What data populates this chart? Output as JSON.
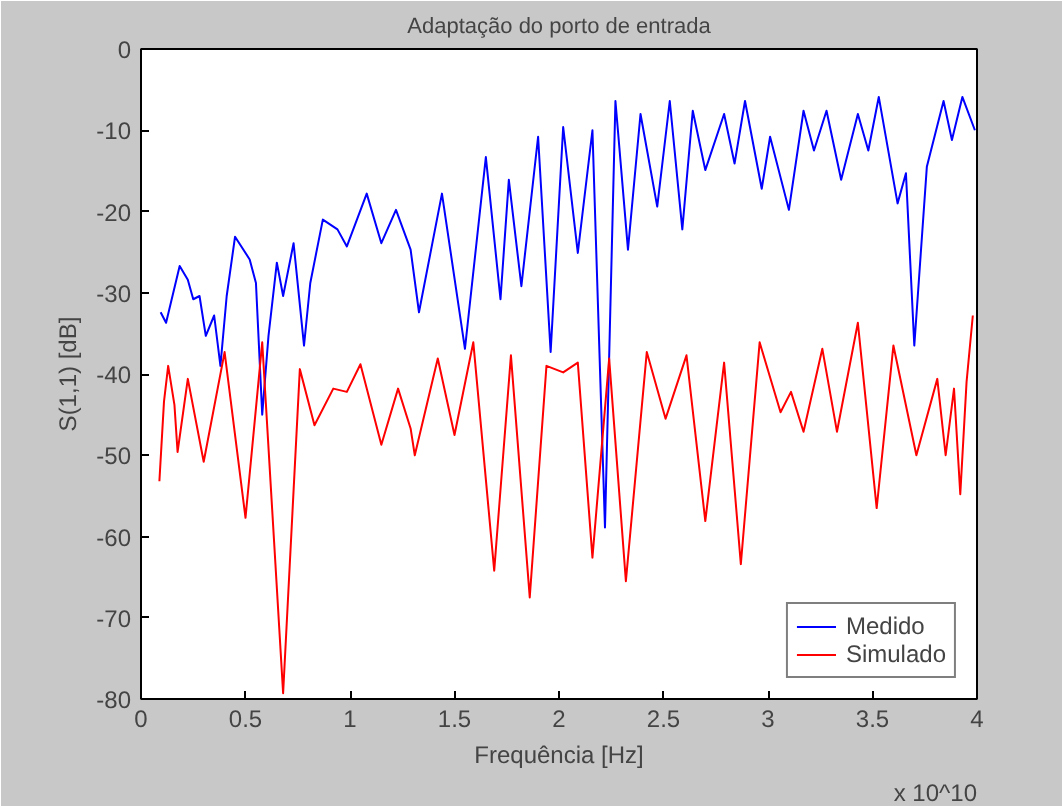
{
  "chart_data": {
    "type": "line",
    "title": "Adaptação do porto de entrada",
    "xlabel": "Frequência [Hz]",
    "ylabel": "S(1,1) [dB]",
    "xlim": [
      0,
      4
    ],
    "xticks": [
      0,
      0.5,
      1,
      1.5,
      2,
      2.5,
      3,
      3.5,
      4
    ],
    "ylim": [
      -80,
      0
    ],
    "yticks": [
      -80,
      -70,
      -60,
      -50,
      -40,
      -30,
      -20,
      -10,
      0
    ],
    "grid": false,
    "legend": "bottom right",
    "annotations": [
      "x 10^10"
    ],
    "series": [
      {
        "name": "Medido",
        "color": "#0000ff",
        "x": [
          0.094,
          0.12,
          0.185,
          0.224,
          0.25,
          0.28,
          0.31,
          0.35,
          0.38,
          0.41,
          0.45,
          0.52,
          0.55,
          0.58,
          0.61,
          0.65,
          0.68,
          0.73,
          0.78,
          0.81,
          0.87,
          0.94,
          0.985,
          1.08,
          1.15,
          1.22,
          1.29,
          1.33,
          1.44,
          1.55,
          1.65,
          1.72,
          1.76,
          1.82,
          1.9,
          1.96,
          2.02,
          2.09,
          2.16,
          2.22,
          2.27,
          2.33,
          2.39,
          2.47,
          2.53,
          2.59,
          2.64,
          2.7,
          2.79,
          2.84,
          2.89,
          2.97,
          3.01,
          3.1,
          3.17,
          3.22,
          3.28,
          3.35,
          3.43,
          3.48,
          3.53,
          3.62,
          3.66,
          3.7,
          3.76,
          3.84,
          3.88,
          3.93,
          3.99
        ],
        "values": [
          -32.4,
          -33.7,
          -26.7,
          -28.4,
          -30.8,
          -30.4,
          -35.3,
          -32.8,
          -39,
          -30.4,
          -23.1,
          -25.9,
          -28.8,
          -45,
          -35.3,
          -26.3,
          -30.4,
          -23.9,
          -36.5,
          -28.8,
          -21,
          -22.2,
          -24.3,
          -17.8,
          -23.9,
          -19.8,
          -24.7,
          -32.4,
          -17.8,
          -36.9,
          -13.3,
          -30.8,
          -16.1,
          -29.2,
          -10.8,
          -37.3,
          -9.6,
          -25.1,
          -10,
          -58.9,
          -6.4,
          -24.7,
          -8,
          -19.4,
          -6.4,
          -22.2,
          -7.6,
          -14.9,
          -8,
          -14.1,
          -6.4,
          -17.2,
          -10.8,
          -19.8,
          -7.6,
          -12.5,
          -7.6,
          -16.1,
          -8,
          -12.5,
          -5.9,
          -19,
          -15.3,
          -36.5,
          -14.5,
          -6.4,
          -11.2,
          -5.9,
          -10
        ]
      },
      {
        "name": "Simulado",
        "color": "#ff0000",
        "x": [
          0.088,
          0.11,
          0.13,
          0.16,
          0.175,
          0.224,
          0.3,
          0.4,
          0.5,
          0.58,
          0.68,
          0.76,
          0.83,
          0.92,
          0.985,
          1.05,
          1.15,
          1.23,
          1.29,
          1.31,
          1.42,
          1.5,
          1.59,
          1.69,
          1.77,
          1.86,
          1.94,
          2.02,
          2.09,
          2.16,
          2.24,
          2.32,
          2.42,
          2.51,
          2.61,
          2.7,
          2.79,
          2.87,
          2.96,
          3.06,
          3.11,
          3.17,
          3.26,
          3.33,
          3.43,
          3.52,
          3.6,
          3.71,
          3.81,
          3.85,
          3.89,
          3.92,
          3.95,
          3.98
        ],
        "values": [
          -53.2,
          -43.4,
          -39,
          -43.8,
          -49.6,
          -40.6,
          -50.8,
          -37.3,
          -57.7,
          -36.1,
          -79.3,
          -39.4,
          -46.3,
          -41.8,
          -42.2,
          -38.8,
          -48.7,
          -41.8,
          -46.7,
          -50,
          -38.1,
          -47.5,
          -36.1,
          -64.2,
          -37.7,
          -67.5,
          -39,
          -39.8,
          -38.6,
          -62.6,
          -38.1,
          -65.5,
          -37.3,
          -45.5,
          -37.7,
          -58.1,
          -38.6,
          -63.4,
          -36.1,
          -44.7,
          -42.2,
          -47.1,
          -36.9,
          -47.1,
          -33.7,
          -56.5,
          -36.5,
          -50,
          -40.6,
          -50,
          -41.8,
          -54.8,
          -41,
          -32.8
        ]
      }
    ]
  }
}
